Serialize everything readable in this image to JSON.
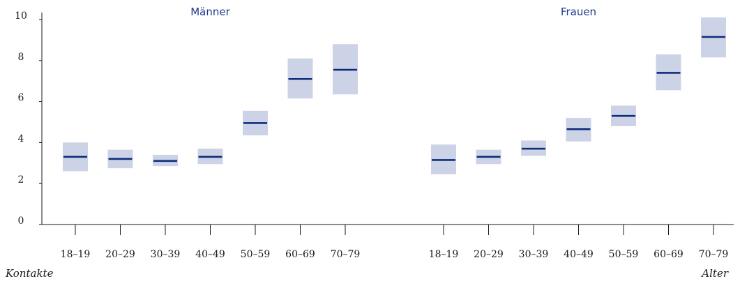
{
  "chart_data": {
    "type": "range-bar",
    "y_caption": "Kontakte",
    "x_caption": "Alter",
    "ylim": [
      0,
      10
    ],
    "yticks": [
      "0",
      "2",
      "4",
      "6",
      "8",
      "10"
    ],
    "colors": {
      "box": "#ccd3e6",
      "median": "#0f2c7a",
      "panel_title": "#1f3a8a"
    },
    "groups": [
      {
        "name": "Männer",
        "categories": [
          "18–19",
          "20–29",
          "30–39",
          "40–49",
          "50–59",
          "60–69",
          "70–79"
        ],
        "median": [
          3.3,
          3.2,
          3.1,
          3.3,
          4.95,
          7.1,
          7.55
        ],
        "low": [
          2.6,
          2.75,
          2.85,
          2.95,
          4.35,
          6.15,
          6.35
        ],
        "high": [
          4.0,
          3.65,
          3.4,
          3.7,
          5.55,
          8.1,
          8.8
        ]
      },
      {
        "name": "Frauen",
        "categories": [
          "18–19",
          "20–29",
          "30–39",
          "40–49",
          "50–59",
          "60–69",
          "70–79"
        ],
        "median": [
          3.15,
          3.3,
          3.7,
          4.65,
          5.3,
          7.4,
          9.15
        ],
        "low": [
          2.45,
          2.95,
          3.35,
          4.05,
          4.8,
          6.55,
          8.15
        ],
        "high": [
          3.9,
          3.65,
          4.1,
          5.2,
          5.8,
          8.3,
          10.1
        ]
      }
    ]
  }
}
